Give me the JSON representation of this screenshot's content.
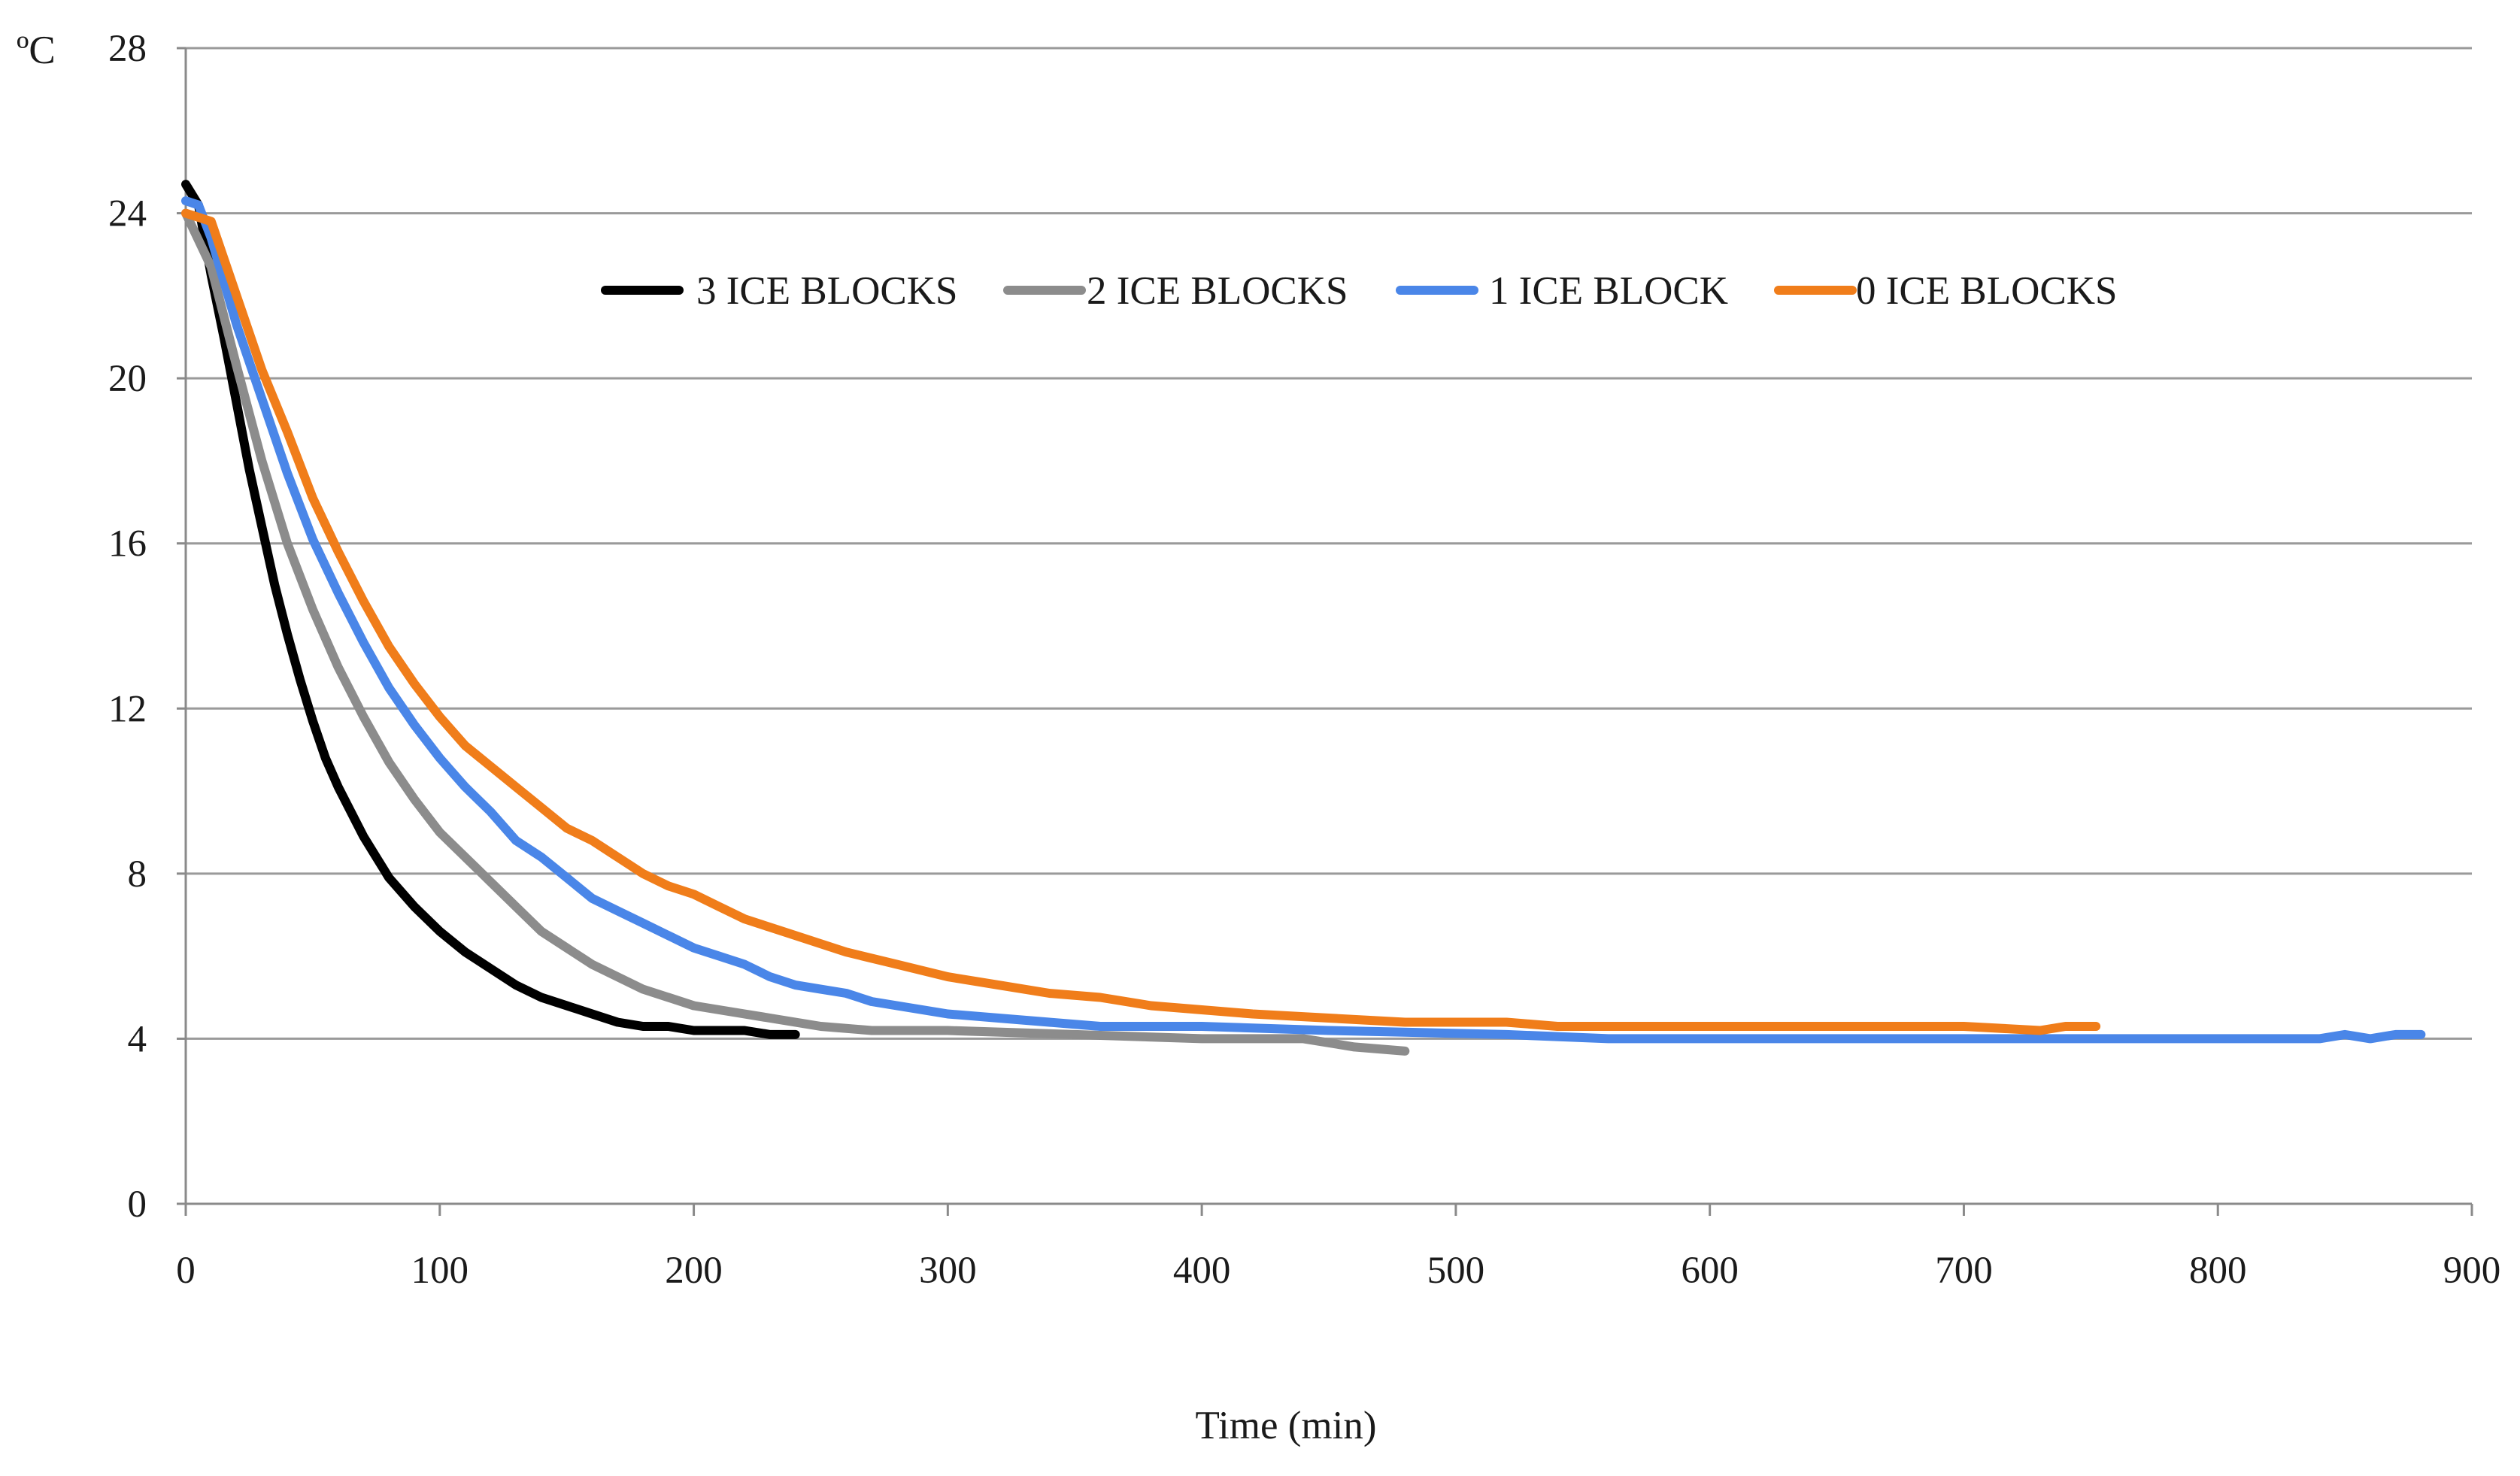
{
  "chart_data": {
    "type": "line",
    "title": "",
    "xlabel": "Time (min)",
    "ylabel": "ºC",
    "xlim": [
      0,
      900
    ],
    "ylim": [
      0,
      28
    ],
    "xticks": [
      0,
      100,
      200,
      300,
      400,
      500,
      600,
      700,
      800,
      900
    ],
    "yticks": [
      0,
      4,
      8,
      12,
      16,
      20,
      24,
      28
    ],
    "grid": "horizontal",
    "legend_position": "top-center",
    "series": [
      {
        "name": "3 ICE BLOCKS",
        "color": "#000000",
        "points": [
          [
            0,
            24.7
          ],
          [
            5,
            24.2
          ],
          [
            10,
            22.5
          ],
          [
            15,
            21
          ],
          [
            20,
            19.4
          ],
          [
            25,
            17.8
          ],
          [
            30,
            16.4
          ],
          [
            35,
            15
          ],
          [
            40,
            13.8
          ],
          [
            45,
            12.7
          ],
          [
            50,
            11.7
          ],
          [
            55,
            10.8
          ],
          [
            60,
            10.1
          ],
          [
            70,
            8.9
          ],
          [
            80,
            7.9
          ],
          [
            90,
            7.2
          ],
          [
            100,
            6.6
          ],
          [
            110,
            6.1
          ],
          [
            120,
            5.7
          ],
          [
            130,
            5.3
          ],
          [
            140,
            5
          ],
          [
            150,
            4.8
          ],
          [
            160,
            4.6
          ],
          [
            170,
            4.4
          ],
          [
            180,
            4.3
          ],
          [
            190,
            4.3
          ],
          [
            200,
            4.2
          ],
          [
            210,
            4.2
          ],
          [
            220,
            4.2
          ],
          [
            230,
            4.1
          ],
          [
            240,
            4.1
          ]
        ]
      },
      {
        "name": "2 ICE BLOCKS",
        "color": "#8c8c8c",
        "points": [
          [
            0,
            24
          ],
          [
            10,
            22.7
          ],
          [
            20,
            20.3
          ],
          [
            30,
            18
          ],
          [
            40,
            16
          ],
          [
            50,
            14.4
          ],
          [
            60,
            13
          ],
          [
            70,
            11.8
          ],
          [
            80,
            10.7
          ],
          [
            90,
            9.8
          ],
          [
            100,
            9
          ],
          [
            110,
            8.4
          ],
          [
            120,
            7.8
          ],
          [
            130,
            7.2
          ],
          [
            140,
            6.6
          ],
          [
            150,
            6.2
          ],
          [
            160,
            5.8
          ],
          [
            170,
            5.5
          ],
          [
            180,
            5.2
          ],
          [
            190,
            5
          ],
          [
            200,
            4.8
          ],
          [
            210,
            4.7
          ],
          [
            220,
            4.6
          ],
          [
            230,
            4.5
          ],
          [
            240,
            4.4
          ],
          [
            250,
            4.3
          ],
          [
            270,
            4.2
          ],
          [
            300,
            4.2
          ],
          [
            350,
            4.1
          ],
          [
            400,
            4
          ],
          [
            440,
            4
          ],
          [
            460,
            3.8
          ],
          [
            480,
            3.7
          ]
        ]
      },
      {
        "name": "1 ICE BLOCK",
        "color": "#4a86e8",
        "points": [
          [
            0,
            24.3
          ],
          [
            5,
            24.2
          ],
          [
            10,
            23.4
          ],
          [
            20,
            21.3
          ],
          [
            30,
            19.5
          ],
          [
            40,
            17.7
          ],
          [
            50,
            16.1
          ],
          [
            60,
            14.8
          ],
          [
            70,
            13.6
          ],
          [
            80,
            12.5
          ],
          [
            90,
            11.6
          ],
          [
            100,
            10.8
          ],
          [
            110,
            10.1
          ],
          [
            120,
            9.5
          ],
          [
            130,
            8.8
          ],
          [
            140,
            8.4
          ],
          [
            150,
            7.9
          ],
          [
            160,
            7.4
          ],
          [
            170,
            7.1
          ],
          [
            180,
            6.8
          ],
          [
            190,
            6.5
          ],
          [
            200,
            6.2
          ],
          [
            210,
            6
          ],
          [
            220,
            5.8
          ],
          [
            230,
            5.5
          ],
          [
            240,
            5.3
          ],
          [
            250,
            5.2
          ],
          [
            260,
            5.1
          ],
          [
            270,
            4.9
          ],
          [
            280,
            4.8
          ],
          [
            290,
            4.7
          ],
          [
            300,
            4.6
          ],
          [
            320,
            4.5
          ],
          [
            340,
            4.4
          ],
          [
            360,
            4.3
          ],
          [
            400,
            4.3
          ],
          [
            450,
            4.2
          ],
          [
            520,
            4.1
          ],
          [
            560,
            4
          ],
          [
            700,
            4
          ],
          [
            840,
            4
          ],
          [
            850,
            4.1
          ],
          [
            860,
            4
          ],
          [
            870,
            4.1
          ],
          [
            880,
            4.1
          ]
        ]
      },
      {
        "name": "0 ICE BLOCKS",
        "color": "#f07d1a",
        "points": [
          [
            0,
            24
          ],
          [
            10,
            23.8
          ],
          [
            20,
            22
          ],
          [
            30,
            20.2
          ],
          [
            40,
            18.7
          ],
          [
            50,
            17.1
          ],
          [
            60,
            15.8
          ],
          [
            70,
            14.6
          ],
          [
            80,
            13.5
          ],
          [
            90,
            12.6
          ],
          [
            100,
            11.8
          ],
          [
            110,
            11.1
          ],
          [
            120,
            10.6
          ],
          [
            130,
            10.1
          ],
          [
            140,
            9.6
          ],
          [
            150,
            9.1
          ],
          [
            160,
            8.8
          ],
          [
            170,
            8.4
          ],
          [
            180,
            8
          ],
          [
            190,
            7.7
          ],
          [
            200,
            7.5
          ],
          [
            210,
            7.2
          ],
          [
            220,
            6.9
          ],
          [
            230,
            6.7
          ],
          [
            240,
            6.5
          ],
          [
            250,
            6.3
          ],
          [
            260,
            6.1
          ],
          [
            280,
            5.8
          ],
          [
            300,
            5.5
          ],
          [
            320,
            5.3
          ],
          [
            340,
            5.1
          ],
          [
            360,
            5
          ],
          [
            380,
            4.8
          ],
          [
            400,
            4.7
          ],
          [
            420,
            4.6
          ],
          [
            450,
            4.5
          ],
          [
            480,
            4.4
          ],
          [
            520,
            4.4
          ],
          [
            540,
            4.3
          ],
          [
            560,
            4.3
          ],
          [
            600,
            4.3
          ],
          [
            650,
            4.3
          ],
          [
            700,
            4.3
          ],
          [
            730,
            4.2
          ],
          [
            740,
            4.3
          ],
          [
            752,
            4.3
          ]
        ]
      }
    ]
  }
}
